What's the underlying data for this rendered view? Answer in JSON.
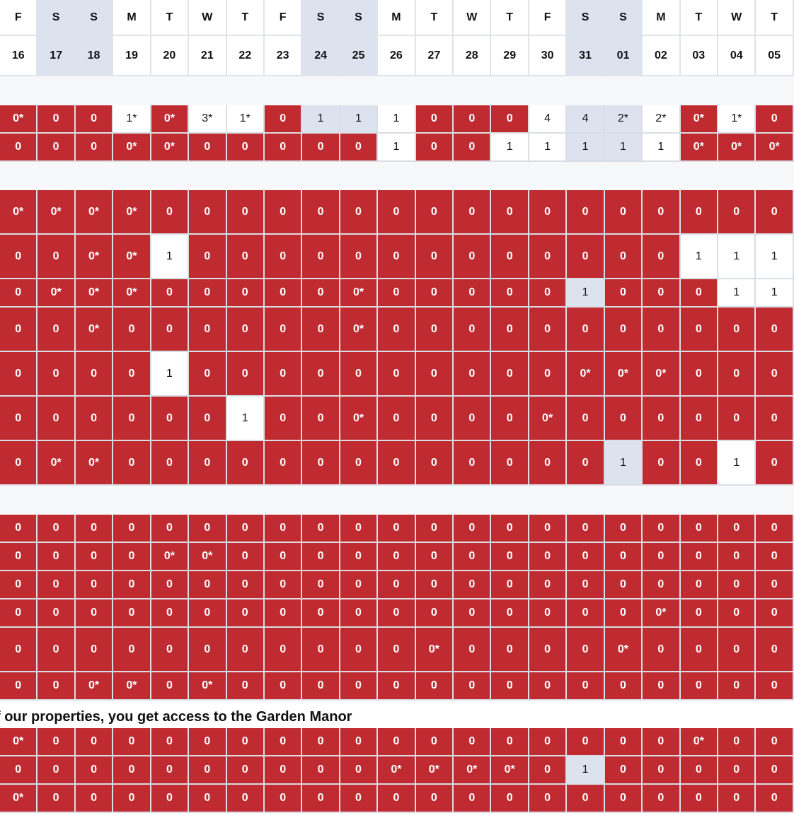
{
  "calendar": {
    "weekday_letters": [
      "F",
      "S",
      "S",
      "M",
      "T",
      "W",
      "T",
      "F",
      "S",
      "S",
      "M",
      "T",
      "W",
      "T",
      "F",
      "S",
      "S",
      "M",
      "T",
      "W",
      "T"
    ],
    "dates": [
      "16",
      "17",
      "18",
      "19",
      "20",
      "21",
      "22",
      "23",
      "24",
      "25",
      "26",
      "27",
      "28",
      "29",
      "30",
      "31",
      "01",
      "02",
      "03",
      "04",
      "05"
    ],
    "weekend_flags": [
      false,
      true,
      true,
      false,
      false,
      false,
      false,
      false,
      true,
      true,
      false,
      false,
      false,
      false,
      false,
      true,
      true,
      false,
      false,
      false,
      false
    ]
  },
  "colors": {
    "unavailable": "#bf2b30",
    "available": "#ffffff",
    "weekend_available": "#dce3ef"
  },
  "group_note": "f our properties, you get access to the Garden Manor",
  "groups": [
    {
      "rows": [
        [
          "0*",
          "0",
          "0",
          "1*",
          "0*",
          "3*",
          "1*",
          "0",
          "1",
          "1",
          "1",
          "0",
          "0",
          "0",
          "4",
          "4",
          "2*",
          "2*",
          "0*",
          "1*",
          "0"
        ],
        [
          "0",
          "0",
          "0",
          "0*",
          "0*",
          "0",
          "0",
          "0",
          "0",
          "0",
          "1",
          "0",
          "0",
          "1",
          "1",
          "1",
          "1",
          "1",
          "0*",
          "0*",
          "0*"
        ]
      ]
    },
    {
      "rows": [
        [
          "0*",
          "0*",
          "0*",
          "0*",
          "0",
          "0",
          "0",
          "0",
          "0",
          "0",
          "0",
          "0",
          "0",
          "0",
          "0",
          "0",
          "0",
          "0",
          "0",
          "0",
          "0"
        ],
        [
          "0",
          "0",
          "0*",
          "0*",
          "1",
          "0",
          "0",
          "0",
          "0",
          "0",
          "0",
          "0",
          "0",
          "0",
          "0",
          "0",
          "0",
          "0",
          "1",
          "1",
          "1"
        ],
        [
          "0",
          "0*",
          "0*",
          "0*",
          "0",
          "0",
          "0",
          "0",
          "0",
          "0*",
          "0",
          "0",
          "0",
          "0",
          "0",
          "1",
          "0",
          "0",
          "0",
          "1",
          "1"
        ],
        [
          "0",
          "0",
          "0*",
          "0",
          "0",
          "0",
          "0",
          "0",
          "0",
          "0*",
          "0",
          "0",
          "0",
          "0",
          "0",
          "0",
          "0",
          "0",
          "0",
          "0",
          "0"
        ],
        [
          "0",
          "0",
          "0",
          "0",
          "1",
          "0",
          "0",
          "0",
          "0",
          "0",
          "0",
          "0",
          "0",
          "0",
          "0",
          "0*",
          "0*",
          "0*",
          "0",
          "0",
          "0"
        ],
        [
          "0",
          "0",
          "0",
          "0",
          "0",
          "0",
          "1",
          "0",
          "0",
          "0*",
          "0",
          "0",
          "0",
          "0",
          "0*",
          "0",
          "0",
          "0",
          "0",
          "0",
          "0"
        ],
        [
          "0",
          "0*",
          "0*",
          "0",
          "0",
          "0",
          "0",
          "0",
          "0",
          "0",
          "0",
          "0",
          "0",
          "0",
          "0",
          "0",
          "1",
          "0",
          "0",
          "1",
          "0"
        ]
      ]
    },
    {
      "rows": [
        [
          "0",
          "0",
          "0",
          "0",
          "0",
          "0",
          "0",
          "0",
          "0",
          "0",
          "0",
          "0",
          "0",
          "0",
          "0",
          "0",
          "0",
          "0",
          "0",
          "0",
          "0"
        ],
        [
          "0",
          "0",
          "0",
          "0",
          "0*",
          "0*",
          "0",
          "0",
          "0",
          "0",
          "0",
          "0",
          "0",
          "0",
          "0",
          "0",
          "0",
          "0",
          "0",
          "0",
          "0"
        ],
        [
          "0",
          "0",
          "0",
          "0",
          "0",
          "0",
          "0",
          "0",
          "0",
          "0",
          "0",
          "0",
          "0",
          "0",
          "0",
          "0",
          "0",
          "0",
          "0",
          "0",
          "0"
        ],
        [
          "0",
          "0",
          "0",
          "0",
          "0",
          "0",
          "0",
          "0",
          "0",
          "0",
          "0",
          "0",
          "0",
          "0",
          "0",
          "0",
          "0",
          "0*",
          "0",
          "0",
          "0"
        ],
        [
          "0",
          "0",
          "0",
          "0",
          "0",
          "0",
          "0",
          "0",
          "0",
          "0",
          "0",
          "0*",
          "0",
          "0",
          "0",
          "0",
          "0*",
          "0",
          "0",
          "0",
          "0"
        ],
        [
          "0",
          "0",
          "0*",
          "0*",
          "0",
          "0*",
          "0",
          "0",
          "0",
          "0",
          "0",
          "0",
          "0",
          "0",
          "0",
          "0",
          "0",
          "0",
          "0",
          "0",
          "0"
        ]
      ]
    },
    {
      "rows": [
        [
          "0*",
          "0",
          "0",
          "0",
          "0",
          "0",
          "0",
          "0",
          "0",
          "0",
          "0",
          "0",
          "0",
          "0",
          "0",
          "0",
          "0",
          "0",
          "0*",
          "0",
          "0"
        ],
        [
          "0",
          "0",
          "0",
          "0",
          "0",
          "0",
          "0",
          "0",
          "0",
          "0",
          "0*",
          "0*",
          "0*",
          "0*",
          "0",
          "1",
          "0",
          "0",
          "0",
          "0",
          "0"
        ],
        [
          "0*",
          "0",
          "0",
          "0",
          "0",
          "0",
          "0",
          "0",
          "0",
          "0",
          "0",
          "0",
          "0",
          "0",
          "0",
          "0",
          "0",
          "0",
          "0",
          "0",
          "0"
        ]
      ]
    }
  ]
}
